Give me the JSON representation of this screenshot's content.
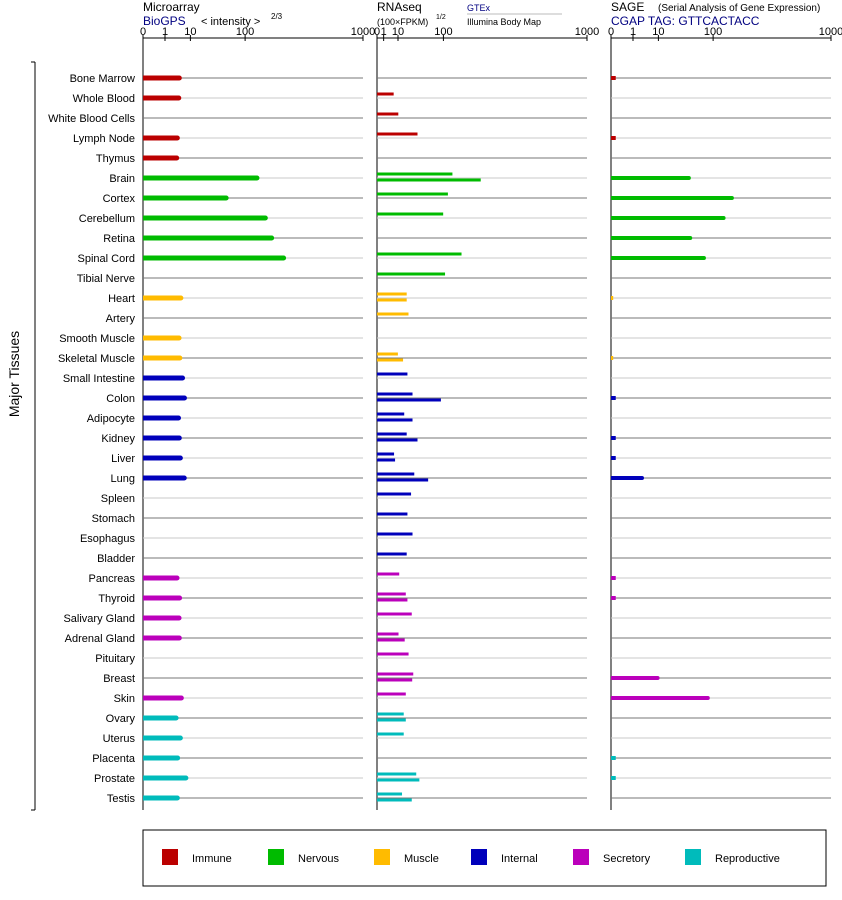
{
  "axis_label": "Major Tissues",
  "panels": {
    "microarray": {
      "title": "Microarray",
      "source": "BioGPS",
      "unit_prefix": "< intensity >",
      "unit_exp": "2/3"
    },
    "rnaseq": {
      "title": "RNAseq",
      "unit": "(100×FPKM)",
      "unit_exp": "1/2",
      "source_top": "GTEx",
      "source_bottom": "Illumina Body Map"
    },
    "sage": {
      "title": "SAGE",
      "subtitle": "(Serial Analysis of Gene Expression)",
      "tag": "CGAP TAG: GTTCACTACC"
    }
  },
  "legend": [
    {
      "key": "immune",
      "label": "Immune",
      "color": "#bb0000"
    },
    {
      "key": "nervous",
      "label": "Nervous",
      "color": "#00bb00"
    },
    {
      "key": "muscle",
      "label": "Muscle",
      "color": "#ffbb00"
    },
    {
      "key": "internal",
      "label": "Internal",
      "color": "#0000bb"
    },
    {
      "key": "secretory",
      "label": "Secretory",
      "color": "#bb00bb"
    },
    {
      "key": "reproductive",
      "label": "Reproductive",
      "color": "#00bbbb"
    }
  ],
  "chart_data": {
    "type": "bar",
    "scale": "power",
    "xlim": [
      0,
      1000
    ],
    "ticks": [
      "0",
      "1",
      "10",
      "100",
      "1000"
    ],
    "ticks_num": [
      0,
      1,
      10,
      100,
      1000
    ],
    "categories": [
      "Bone Marrow",
      "Whole Blood",
      "White Blood Cells",
      "Lymph Node",
      "Thymus",
      "Brain",
      "Cortex",
      "Cerebellum",
      "Retina",
      "Spinal Cord",
      "Tibial Nerve",
      "Heart",
      "Artery",
      "Smooth Muscle",
      "Skeletal Muscle",
      "Small Intestine",
      "Colon",
      "Adipocyte",
      "Kidney",
      "Liver",
      "Lung",
      "Spleen",
      "Stomach",
      "Esophagus",
      "Bladder",
      "Pancreas",
      "Thyroid",
      "Salivary Gland",
      "Adrenal Gland",
      "Pituitary",
      "Breast",
      "Skin",
      "Ovary",
      "Uterus",
      "Placenta",
      "Prostate",
      "Testis"
    ],
    "groups": [
      "immune",
      "immune",
      "immune",
      "immune",
      "immune",
      "nervous",
      "nervous",
      "nervous",
      "nervous",
      "nervous",
      "nervous",
      "muscle",
      "muscle",
      "muscle",
      "muscle",
      "internal",
      "internal",
      "internal",
      "internal",
      "internal",
      "internal",
      "internal",
      "internal",
      "internal",
      "internal",
      "secretory",
      "secretory",
      "secretory",
      "secretory",
      "secretory",
      "secretory",
      "secretory",
      "reproductive",
      "reproductive",
      "reproductive",
      "reproductive",
      "reproductive"
    ],
    "microarray": [
      4.5,
      4.3,
      null,
      3.8,
      3.6,
      139,
      54,
      172,
      200,
      261,
      null,
      5.1,
      null,
      4.4,
      4.7,
      5.8,
      6.7,
      4.2,
      4.5,
      4.9,
      6.6,
      null,
      null,
      null,
      null,
      3.7,
      4.6,
      4.4,
      4.5,
      null,
      null,
      5.3,
      3.4,
      4.9,
      3.9,
      7.4,
      3.8
    ],
    "rnaseq_gtex": [
      null,
      null,
      null,
      null,
      null,
      129,
      null,
      null,
      null,
      null,
      null,
      null,
      null,
      null,
      null,
      21,
      null,
      null,
      null,
      null,
      null,
      null,
      null,
      null,
      null,
      null,
      null,
      null,
      null,
      null,
      null,
      null,
      null,
      null,
      null,
      null,
      null
    ],
    "rnaseq_bodymap": [
      null,
      null,
      null,
      null,
      null,
      null,
      null,
      null,
      null,
      null,
      null,
      null,
      null,
      null,
      null,
      null,
      null,
      null,
      null,
      null,
      null,
      null,
      null,
      null,
      null,
      null,
      null,
      null,
      null,
      null,
      null,
      null,
      null,
      null,
      null,
      null,
      null
    ],
    "rnaseq": [
      [
        null
      ],
      [
        6.3
      ],
      [
        10.3
      ],
      [
        37.2
      ],
      [
        null
      ],
      [
        129,
        244
      ],
      [
        114
      ],
      [
        99.3
      ],
      [
        null
      ],
      [
        162
      ],
      [
        105
      ],
      [
        20,
        20
      ],
      [
        22.5
      ],
      [
        null
      ],
      [
        9.9,
        15.4
      ],
      [
        21
      ],
      [
        28.6,
        92.6
      ],
      [
        16.8,
        28.6
      ],
      [
        20,
        37.2
      ],
      [
        6.6,
        7.4
      ],
      [
        31.5,
        59.3
      ],
      [
        26.3
      ],
      [
        21
      ],
      [
        28.6
      ],
      [
        20
      ],
      [
        11.2
      ],
      [
        18.8,
        21
      ],
      [
        27.4
      ],
      [
        10.5,
        17.4
      ],
      [
        22.6
      ],
      [
        29.8,
        28.1
      ],
      [
        18.8
      ],
      [
        16.2,
        18.8
      ],
      [
        16.2
      ],
      [
        null
      ],
      [
        34.9,
        40.7
      ],
      [
        14.2,
        27.4
      ]
    ],
    "sage": [
      0.01,
      null,
      null,
      0.01,
      null,
      44.3,
      166,
      134,
      46.7,
      75.4,
      null,
      0.001,
      null,
      null,
      0.001,
      null,
      0.01,
      null,
      0.01,
      0.01,
      2.8,
      null,
      null,
      null,
      null,
      0.01,
      0.01,
      null,
      null,
      null,
      9.5,
      85.2,
      null,
      null,
      0.01,
      0.01,
      null
    ]
  }
}
